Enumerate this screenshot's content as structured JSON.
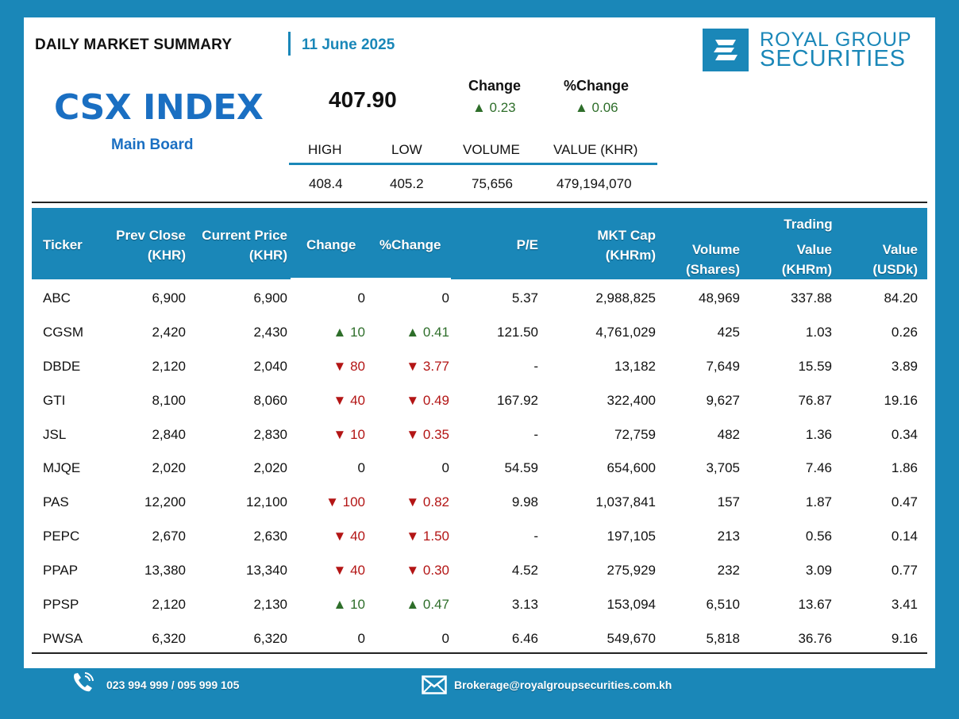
{
  "header": {
    "title": "DAILY MARKET SUMMARY",
    "date": "11 June 2025",
    "logo_line1": "ROYAL GROUP",
    "logo_line2": "SECURITIES"
  },
  "index": {
    "name": "CSX INDEX",
    "board": "Main Board",
    "value": "407.90",
    "change_label": "Change",
    "change_value": "▲ 0.23",
    "pct_change_label": "%Change",
    "pct_change_value": "▲ 0.06",
    "stats": {
      "high_label": "HIGH",
      "high": "408.4",
      "low_label": "LOW",
      "low": "405.2",
      "volume_label": "VOLUME",
      "volume": "75,656",
      "value_label": "VALUE (KHR)",
      "value": "479,194,070"
    }
  },
  "table": {
    "headers": {
      "ticker": "Ticker",
      "prev_close_1": "Prev Close",
      "prev_close_2": "(KHR)",
      "current_price_1": "Current Price",
      "current_price_2": "(KHR)",
      "change": "Change",
      "pct_change": "%Change",
      "pe": "P/E",
      "mkt_cap_1": "MKT Cap",
      "mkt_cap_2": "(KHRm)",
      "volume_1": "Volume",
      "volume_2": "(Shares)",
      "trading": "Trading",
      "value_khr_1": "Value",
      "value_khr_2": "(KHRm)",
      "value_usd_1": "Value",
      "value_usd_2": "(USDk)"
    },
    "rows": [
      {
        "ticker": "ABC",
        "prev": "6,900",
        "cur": "6,900",
        "chg": "0",
        "chg_dir": "flat",
        "pct": "0",
        "pe": "5.37",
        "mcap": "2,988,825",
        "vol": "48,969",
        "val_khr": "337.88",
        "val_usd": "84.20"
      },
      {
        "ticker": "CGSM",
        "prev": "2,420",
        "cur": "2,430",
        "chg": "▲ 10",
        "chg_dir": "up",
        "pct": "▲ 0.41",
        "pe": "121.50",
        "mcap": "4,761,029",
        "vol": "425",
        "val_khr": "1.03",
        "val_usd": "0.26"
      },
      {
        "ticker": "DBDE",
        "prev": "2,120",
        "cur": "2,040",
        "chg": "▼ 80",
        "chg_dir": "down",
        "pct": "▼ 3.77",
        "pe": "-",
        "mcap": "13,182",
        "vol": "7,649",
        "val_khr": "15.59",
        "val_usd": "3.89"
      },
      {
        "ticker": "GTI",
        "prev": "8,100",
        "cur": "8,060",
        "chg": "▼ 40",
        "chg_dir": "down",
        "pct": "▼ 0.49",
        "pe": "167.92",
        "mcap": "322,400",
        "vol": "9,627",
        "val_khr": "76.87",
        "val_usd": "19.16"
      },
      {
        "ticker": "JSL",
        "prev": "2,840",
        "cur": "2,830",
        "chg": "▼ 10",
        "chg_dir": "down",
        "pct": "▼ 0.35",
        "pe": "-",
        "mcap": "72,759",
        "vol": "482",
        "val_khr": "1.36",
        "val_usd": "0.34"
      },
      {
        "ticker": "MJQE",
        "prev": "2,020",
        "cur": "2,020",
        "chg": "0",
        "chg_dir": "flat",
        "pct": "0",
        "pe": "54.59",
        "mcap": "654,600",
        "vol": "3,705",
        "val_khr": "7.46",
        "val_usd": "1.86"
      },
      {
        "ticker": "PAS",
        "prev": "12,200",
        "cur": "12,100",
        "chg": "▼ 100",
        "chg_dir": "down",
        "pct": "▼ 0.82",
        "pe": "9.98",
        "mcap": "1,037,841",
        "vol": "157",
        "val_khr": "1.87",
        "val_usd": "0.47"
      },
      {
        "ticker": "PEPC",
        "prev": "2,670",
        "cur": "2,630",
        "chg": "▼ 40",
        "chg_dir": "down",
        "pct": "▼ 1.50",
        "pe": "-",
        "mcap": "197,105",
        "vol": "213",
        "val_khr": "0.56",
        "val_usd": "0.14"
      },
      {
        "ticker": "PPAP",
        "prev": "13,380",
        "cur": "13,340",
        "chg": "▼ 40",
        "chg_dir": "down",
        "pct": "▼ 0.30",
        "pe": "4.52",
        "mcap": "275,929",
        "vol": "232",
        "val_khr": "3.09",
        "val_usd": "0.77"
      },
      {
        "ticker": "PPSP",
        "prev": "2,120",
        "cur": "2,130",
        "chg": "▲ 10",
        "chg_dir": "up",
        "pct": "▲ 0.47",
        "pe": "3.13",
        "mcap": "153,094",
        "vol": "6,510",
        "val_khr": "13.67",
        "val_usd": "3.41"
      },
      {
        "ticker": "PWSA",
        "prev": "6,320",
        "cur": "6,320",
        "chg": "0",
        "chg_dir": "flat",
        "pct": "0",
        "pe": "6.46",
        "mcap": "549,670",
        "vol": "5,818",
        "val_khr": "36.76",
        "val_usd": "9.16"
      }
    ]
  },
  "footer": {
    "phone": "023 994 999 / 095 999 105",
    "email": "Brokerage@royalgroupsecurities.com.kh",
    "phone_icon": "phone-icon",
    "email_icon": "envelope-icon"
  },
  "colors": {
    "brand_blue": "#1a87b8",
    "index_blue": "#1a6fc2",
    "up_green": "#2e6e2a",
    "down_red": "#b31515"
  }
}
